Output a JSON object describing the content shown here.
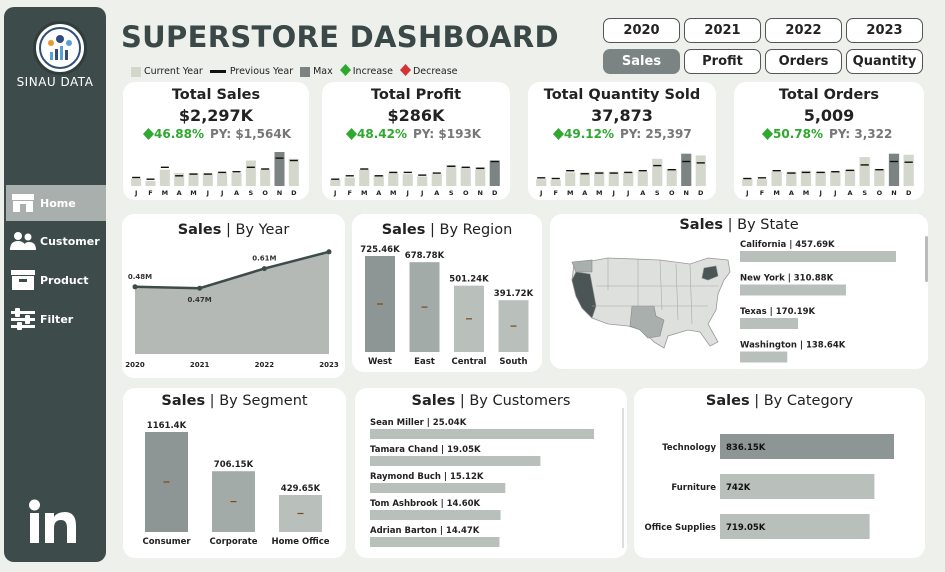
{
  "brand": "SINAU DATA",
  "title": "SUPERSTORE DASHBOARD",
  "nav": [
    {
      "label": "Home",
      "icon": "store-icon"
    },
    {
      "label": "Customer",
      "icon": "users-icon"
    },
    {
      "label": "Product",
      "icon": "box-icon"
    },
    {
      "label": "Filter",
      "icon": "sliders-icon"
    }
  ],
  "years": [
    "2020",
    "2021",
    "2022",
    "2023"
  ],
  "metrics": [
    "Sales",
    "Profit",
    "Orders",
    "Quantity"
  ],
  "selected_metric": "Sales",
  "legend": {
    "current": "Current Year",
    "previous": "Previous Year",
    "max": "Max",
    "increase": "Increase",
    "decrease": "Decrease"
  },
  "colors": {
    "current": "#d3d7cc",
    "max": "#7c8483",
    "previous": "#111111",
    "increase": "#2ea82e",
    "decrease": "#d33333",
    "dark": "#3e4b4b"
  },
  "kpis": [
    {
      "title": "Total Sales",
      "value": "$2,297K",
      "change": "46.88%",
      "py": "PY: $1,564K",
      "months": [
        "J",
        "F",
        "M",
        "A",
        "M",
        "J",
        "J",
        "A",
        "S",
        "O",
        "N",
        "D"
      ],
      "cur": [
        0.22,
        0.15,
        0.48,
        0.38,
        0.38,
        0.38,
        0.38,
        0.38,
        0.75,
        0.48,
        1.0,
        0.8
      ],
      "prev": [
        0.25,
        0.2,
        0.55,
        0.3,
        0.35,
        0.35,
        0.4,
        0.42,
        0.55,
        0.5,
        0.82,
        0.75
      ],
      "max_index": 10
    },
    {
      "title": "Total Profit",
      "value": "$286K",
      "change": "48.42%",
      "py": "PY: $193K",
      "months": [
        "J",
        "F",
        "M",
        "A",
        "M",
        "J",
        "J",
        "A",
        "S",
        "O",
        "N",
        "D"
      ],
      "cur": [
        0.18,
        0.25,
        0.48,
        0.32,
        0.38,
        0.35,
        0.28,
        0.35,
        0.62,
        0.55,
        0.55,
        0.75
      ],
      "prev": [
        0.2,
        0.3,
        0.5,
        0.3,
        0.4,
        0.4,
        0.32,
        0.38,
        0.58,
        0.55,
        0.52,
        0.72
      ],
      "max_index": 11
    },
    {
      "title": "Total Quantity Sold",
      "value": "37,873",
      "change": "49.12%",
      "py": "PY: 25,397",
      "months": [
        "J",
        "F",
        "M",
        "A",
        "M",
        "J",
        "J",
        "A",
        "S",
        "O",
        "N",
        "D"
      ],
      "cur": [
        0.2,
        0.18,
        0.4,
        0.4,
        0.42,
        0.42,
        0.4,
        0.42,
        0.8,
        0.5,
        0.95,
        0.9
      ],
      "prev": [
        0.24,
        0.22,
        0.45,
        0.36,
        0.38,
        0.38,
        0.4,
        0.45,
        0.6,
        0.48,
        0.72,
        0.68
      ],
      "max_index": 10
    },
    {
      "title": "Total Orders",
      "value": "5,009",
      "change": "50.78%",
      "py": "PY: 3,322",
      "months": [
        "J",
        "F",
        "M",
        "A",
        "M",
        "J",
        "J",
        "A",
        "S",
        "O",
        "N",
        "D"
      ],
      "cur": [
        0.2,
        0.2,
        0.42,
        0.42,
        0.45,
        0.42,
        0.42,
        0.48,
        0.85,
        0.5,
        0.95,
        0.92
      ],
      "prev": [
        0.22,
        0.24,
        0.45,
        0.38,
        0.4,
        0.4,
        0.42,
        0.46,
        0.62,
        0.48,
        0.72,
        0.7
      ],
      "max_index": 10
    }
  ],
  "by_year": {
    "title": "Sales",
    "subtitle": "By Year"
  },
  "by_region": {
    "title": "Sales",
    "subtitle": "By Region"
  },
  "by_state": {
    "title": "Sales",
    "subtitle": "By State"
  },
  "by_segment": {
    "title": "Sales",
    "subtitle": "By Segment"
  },
  "by_customers": {
    "title": "Sales",
    "subtitle": "By Customers"
  },
  "by_category": {
    "title": "Sales",
    "subtitle": "By Category"
  },
  "chart_data": [
    {
      "type": "area",
      "title": "Sales | By Year",
      "x": [
        "2020",
        "2021",
        "2022",
        "2023"
      ],
      "values": [
        0.48,
        0.47,
        0.61,
        0.73
      ],
      "labels": [
        "0.48M",
        "0.47M",
        "0.61M",
        ""
      ],
      "ylim": [
        0,
        0.8
      ]
    },
    {
      "type": "bar",
      "title": "Sales | By Region",
      "categories": [
        "West",
        "East",
        "Central",
        "South"
      ],
      "values": [
        725.46,
        678.78,
        501.24,
        391.72
      ],
      "labels": [
        "725.46K",
        "678.78K",
        "501.24K",
        "391.72K"
      ]
    },
    {
      "type": "bar",
      "title": "Sales | By State",
      "orientation": "horizontal",
      "categories": [
        "California",
        "New York",
        "Texas",
        "Washington"
      ],
      "values": [
        457.69,
        310.88,
        170.19,
        138.64
      ],
      "labels": [
        "California | 457.69K",
        "New York | 310.88K",
        "Texas | 170.19K",
        "Washington | 138.64K"
      ]
    },
    {
      "type": "bar",
      "title": "Sales | By Segment",
      "categories": [
        "Consumer",
        "Corporate",
        "Home Office"
      ],
      "values": [
        1161.4,
        706.15,
        429.65
      ],
      "labels": [
        "1161.4K",
        "706.15K",
        "429.65K"
      ]
    },
    {
      "type": "bar",
      "title": "Sales | By Customers",
      "orientation": "horizontal",
      "categories": [
        "Sean Miller",
        "Tamara Chand",
        "Raymond Buch",
        "Tom Ashbrook",
        "Adrian Barton"
      ],
      "values": [
        25.04,
        19.05,
        15.12,
        14.6,
        14.47
      ],
      "labels": [
        "Sean Miller | 25.04K",
        "Tamara Chand | 19.05K",
        "Raymond Buch | 15.12K",
        "Tom Ashbrook | 14.60K",
        "Adrian Barton | 14.47K"
      ]
    },
    {
      "type": "bar",
      "title": "Sales | By Category",
      "orientation": "horizontal",
      "categories": [
        "Technology",
        "Furniture",
        "Office Supplies"
      ],
      "values": [
        836.15,
        742,
        719.05
      ],
      "labels": [
        "836.15K",
        "742K",
        "719.05K"
      ]
    }
  ]
}
